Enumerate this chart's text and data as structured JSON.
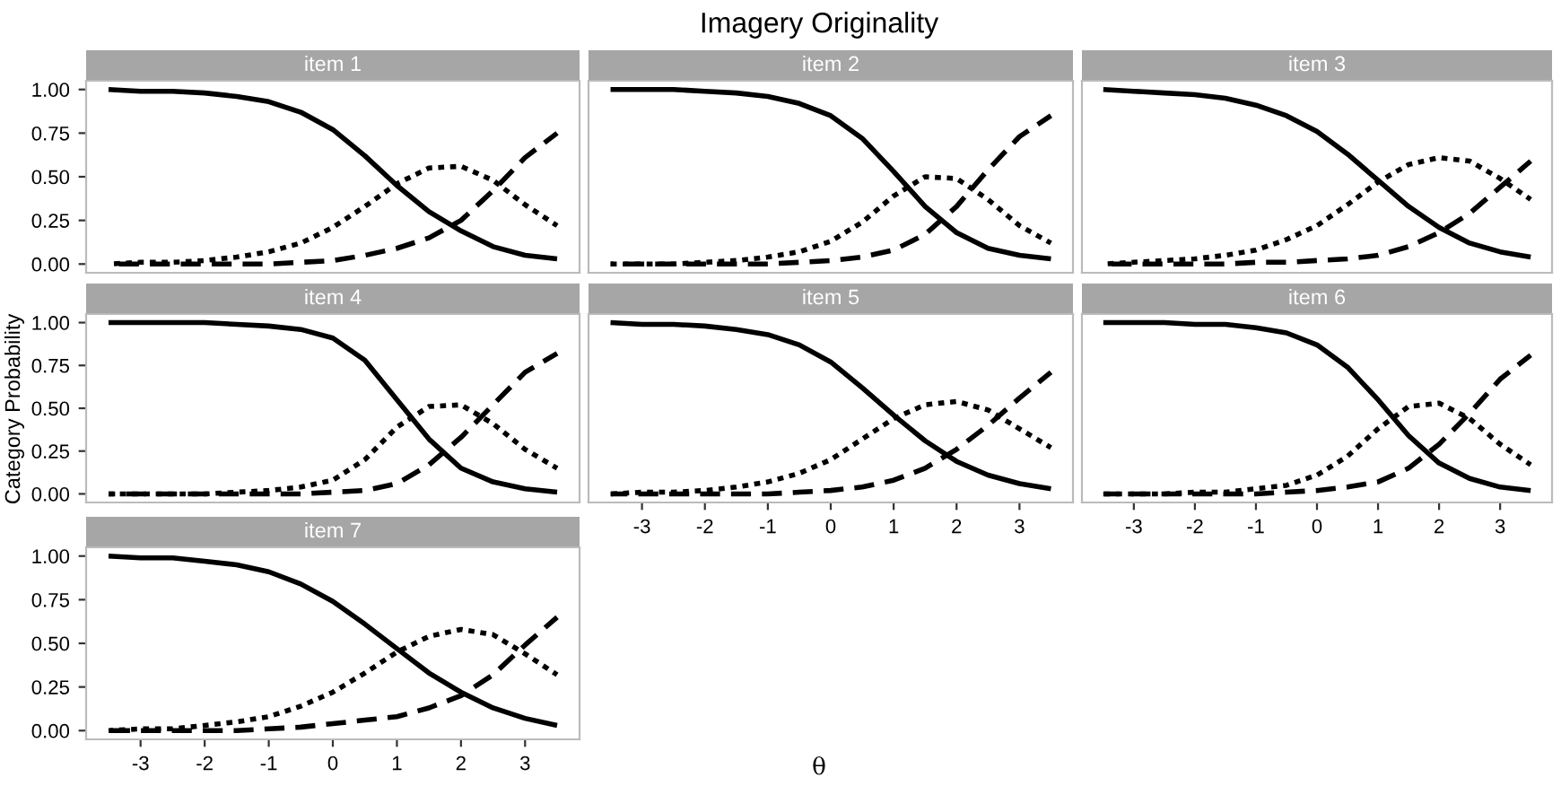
{
  "chart_data": [
    {
      "type": "line",
      "subtitle": "item 1",
      "tick_labels": "y",
      "xlim": [
        -3.85,
        3.85
      ],
      "ylim": [
        -0.05,
        1.05
      ],
      "yticks": [
        {
          "value": 0,
          "label": "0.00"
        },
        {
          "value": 0.25,
          "label": "0.25"
        },
        {
          "value": 0.5,
          "label": "0.50"
        },
        {
          "value": 0.75,
          "label": "0.75"
        },
        {
          "value": 1,
          "label": "1.00"
        }
      ],
      "grid": false,
      "legend": false,
      "x": [
        -3.5,
        -3,
        -2.5,
        -2,
        -1.5,
        -1,
        -0.5,
        0,
        0.5,
        1,
        1.5,
        2,
        2.5,
        3,
        3.5
      ],
      "series": [
        {
          "color": "#000000",
          "line_style": "solid",
          "values": [
            1.0,
            0.99,
            0.99,
            0.98,
            0.96,
            0.93,
            0.87,
            0.77,
            0.62,
            0.45,
            0.3,
            0.19,
            0.1,
            0.05,
            0.03
          ]
        },
        {
          "color": "#000000",
          "line_style": "dotted",
          "values": [
            0,
            0.01,
            0.01,
            0.02,
            0.04,
            0.07,
            0.12,
            0.21,
            0.33,
            0.46,
            0.55,
            0.56,
            0.48,
            0.34,
            0.22
          ]
        },
        {
          "color": "#000000",
          "line_style": "dashed",
          "values": [
            0,
            0,
            0,
            0,
            0,
            0,
            0.01,
            0.02,
            0.05,
            0.09,
            0.15,
            0.25,
            0.42,
            0.61,
            0.75
          ]
        }
      ]
    },
    {
      "type": "line",
      "title": "Imagery Originality",
      "subtitle": "item 2",
      "tick_labels": false,
      "xlim": [
        -3.85,
        3.85
      ],
      "ylim": [
        -0.05,
        1.05
      ],
      "grid": false,
      "legend": false,
      "x": [
        -3.5,
        -3,
        -2.5,
        -2,
        -1.5,
        -1,
        -0.5,
        0,
        0.5,
        1,
        1.5,
        2,
        2.5,
        3,
        3.5
      ],
      "series": [
        {
          "color": "#000000",
          "line_style": "solid",
          "values": [
            1.0,
            1.0,
            1.0,
            0.99,
            0.98,
            0.96,
            0.92,
            0.85,
            0.72,
            0.53,
            0.33,
            0.18,
            0.09,
            0.05,
            0.03
          ]
        },
        {
          "color": "#000000",
          "line_style": "dotted",
          "values": [
            0,
            0,
            0,
            0.01,
            0.02,
            0.04,
            0.07,
            0.13,
            0.24,
            0.39,
            0.5,
            0.49,
            0.37,
            0.22,
            0.12
          ]
        },
        {
          "color": "#000000",
          "line_style": "dashed",
          "values": [
            0,
            0,
            0,
            0,
            0,
            0,
            0.01,
            0.02,
            0.04,
            0.08,
            0.17,
            0.33,
            0.54,
            0.73,
            0.85
          ]
        }
      ]
    },
    {
      "type": "line",
      "subtitle": "item 3",
      "tick_labels": false,
      "xlim": [
        -3.85,
        3.85
      ],
      "ylim": [
        -0.05,
        1.05
      ],
      "grid": false,
      "legend": false,
      "x": [
        -3.5,
        -3,
        -2.5,
        -2,
        -1.5,
        -1,
        -0.5,
        0,
        0.5,
        1,
        1.5,
        2,
        2.5,
        3,
        3.5
      ],
      "series": [
        {
          "color": "#000000",
          "line_style": "solid",
          "values": [
            1.0,
            0.99,
            0.98,
            0.97,
            0.95,
            0.91,
            0.85,
            0.76,
            0.63,
            0.48,
            0.33,
            0.21,
            0.12,
            0.07,
            0.04
          ]
        },
        {
          "color": "#000000",
          "line_style": "dotted",
          "values": [
            0,
            0.01,
            0.02,
            0.03,
            0.05,
            0.08,
            0.14,
            0.22,
            0.34,
            0.47,
            0.57,
            0.61,
            0.59,
            0.49,
            0.37
          ]
        },
        {
          "color": "#000000",
          "line_style": "dashed",
          "values": [
            0,
            0,
            0,
            0,
            0,
            0.01,
            0.01,
            0.02,
            0.03,
            0.05,
            0.1,
            0.18,
            0.29,
            0.44,
            0.59
          ]
        }
      ]
    },
    {
      "type": "line",
      "subtitle": "item 4",
      "ylabel": "Category Probability",
      "tick_labels": "y",
      "xlim": [
        -3.85,
        3.85
      ],
      "ylim": [
        -0.05,
        1.05
      ],
      "yticks": [
        {
          "value": 0,
          "label": "0.00"
        },
        {
          "value": 0.25,
          "label": "0.25"
        },
        {
          "value": 0.5,
          "label": "0.50"
        },
        {
          "value": 0.75,
          "label": "0.75"
        },
        {
          "value": 1,
          "label": "1.00"
        }
      ],
      "grid": false,
      "legend": false,
      "x": [
        -3.5,
        -3,
        -2.5,
        -2,
        -1.5,
        -1,
        -0.5,
        0,
        0.5,
        1,
        1.5,
        2,
        2.5,
        3,
        3.5
      ],
      "series": [
        {
          "color": "#000000",
          "line_style": "solid",
          "values": [
            1.0,
            1.0,
            1.0,
            1.0,
            0.99,
            0.98,
            0.96,
            0.91,
            0.78,
            0.55,
            0.32,
            0.15,
            0.07,
            0.03,
            0.01
          ]
        },
        {
          "color": "#000000",
          "line_style": "dotted",
          "values": [
            0,
            0,
            0,
            0,
            0.01,
            0.02,
            0.04,
            0.08,
            0.2,
            0.39,
            0.51,
            0.52,
            0.41,
            0.26,
            0.15
          ]
        },
        {
          "color": "#000000",
          "line_style": "dashed",
          "values": [
            0,
            0,
            0,
            0,
            0,
            0,
            0,
            0.01,
            0.02,
            0.06,
            0.17,
            0.33,
            0.52,
            0.71,
            0.82
          ]
        }
      ]
    },
    {
      "type": "line",
      "subtitle": "item 5",
      "xlabel": "θ",
      "tick_labels": "x",
      "xlim": [
        -3.85,
        3.85
      ],
      "ylim": [
        -0.05,
        1.05
      ],
      "xticks": [
        -3,
        -2,
        -1,
        0,
        1,
        2,
        3
      ],
      "grid": false,
      "legend": false,
      "x": [
        -3.5,
        -3,
        -2.5,
        -2,
        -1.5,
        -1,
        -0.5,
        0,
        0.5,
        1,
        1.5,
        2,
        2.5,
        3,
        3.5
      ],
      "series": [
        {
          "color": "#000000",
          "line_style": "solid",
          "values": [
            1.0,
            0.99,
            0.99,
            0.98,
            0.96,
            0.93,
            0.87,
            0.77,
            0.62,
            0.46,
            0.31,
            0.19,
            0.11,
            0.06,
            0.03
          ]
        },
        {
          "color": "#000000",
          "line_style": "dotted",
          "values": [
            0,
            0.01,
            0.01,
            0.02,
            0.04,
            0.07,
            0.12,
            0.2,
            0.32,
            0.44,
            0.52,
            0.54,
            0.49,
            0.38,
            0.27
          ]
        },
        {
          "color": "#000000",
          "line_style": "dashed",
          "values": [
            0,
            0,
            0,
            0,
            0,
            0,
            0.01,
            0.02,
            0.04,
            0.08,
            0.15,
            0.26,
            0.4,
            0.56,
            0.71
          ]
        }
      ]
    },
    {
      "type": "line",
      "subtitle": "item 6",
      "tick_labels": "x",
      "xlim": [
        -3.85,
        3.85
      ],
      "ylim": [
        -0.05,
        1.05
      ],
      "xticks": [
        -3,
        -2,
        -1,
        0,
        1,
        2,
        3
      ],
      "grid": false,
      "legend": false,
      "x": [
        -3.5,
        -3,
        -2.5,
        -2,
        -1.5,
        -1,
        -0.5,
        0,
        0.5,
        1,
        1.5,
        2,
        2.5,
        3,
        3.5
      ],
      "series": [
        {
          "color": "#000000",
          "line_style": "solid",
          "values": [
            1.0,
            1.0,
            1.0,
            0.99,
            0.99,
            0.97,
            0.94,
            0.87,
            0.74,
            0.55,
            0.34,
            0.18,
            0.09,
            0.04,
            0.02
          ]
        },
        {
          "color": "#000000",
          "line_style": "dotted",
          "values": [
            0,
            0,
            0,
            0.01,
            0.01,
            0.03,
            0.05,
            0.11,
            0.22,
            0.38,
            0.51,
            0.53,
            0.44,
            0.29,
            0.17
          ]
        },
        {
          "color": "#000000",
          "line_style": "dashed",
          "values": [
            0,
            0,
            0,
            0,
            0,
            0,
            0.01,
            0.02,
            0.04,
            0.07,
            0.15,
            0.29,
            0.47,
            0.67,
            0.81
          ]
        }
      ]
    },
    {
      "type": "line",
      "subtitle": "item 7",
      "xlim": [
        -3.85,
        3.85
      ],
      "ylim": [
        -0.05,
        1.05
      ],
      "xticks": [
        -3,
        -2,
        -1,
        0,
        1,
        2,
        3
      ],
      "yticks": [
        {
          "value": 0,
          "label": "0.00"
        },
        {
          "value": 0.25,
          "label": "0.25"
        },
        {
          "value": 0.5,
          "label": "0.50"
        },
        {
          "value": 0.75,
          "label": "0.75"
        },
        {
          "value": 1,
          "label": "1.00"
        }
      ],
      "grid": false,
      "legend": false,
      "x": [
        -3.5,
        -3,
        -2.5,
        -2,
        -1.5,
        -1,
        -0.5,
        0,
        0.5,
        1,
        1.5,
        2,
        2.5,
        3,
        3.5
      ],
      "series": [
        {
          "color": "#000000",
          "line_style": "solid",
          "values": [
            1.0,
            0.99,
            0.99,
            0.97,
            0.95,
            0.91,
            0.84,
            0.74,
            0.61,
            0.47,
            0.33,
            0.22,
            0.13,
            0.07,
            0.03
          ]
        },
        {
          "color": "#000000",
          "line_style": "dotted",
          "values": [
            0,
            0.01,
            0.01,
            0.03,
            0.05,
            0.08,
            0.14,
            0.22,
            0.33,
            0.45,
            0.54,
            0.58,
            0.55,
            0.44,
            0.32
          ]
        },
        {
          "color": "#000000",
          "line_style": "dashed",
          "values": [
            0,
            0,
            0,
            0,
            0,
            0.01,
            0.02,
            0.04,
            0.06,
            0.08,
            0.13,
            0.2,
            0.32,
            0.49,
            0.65
          ]
        }
      ]
    }
  ]
}
